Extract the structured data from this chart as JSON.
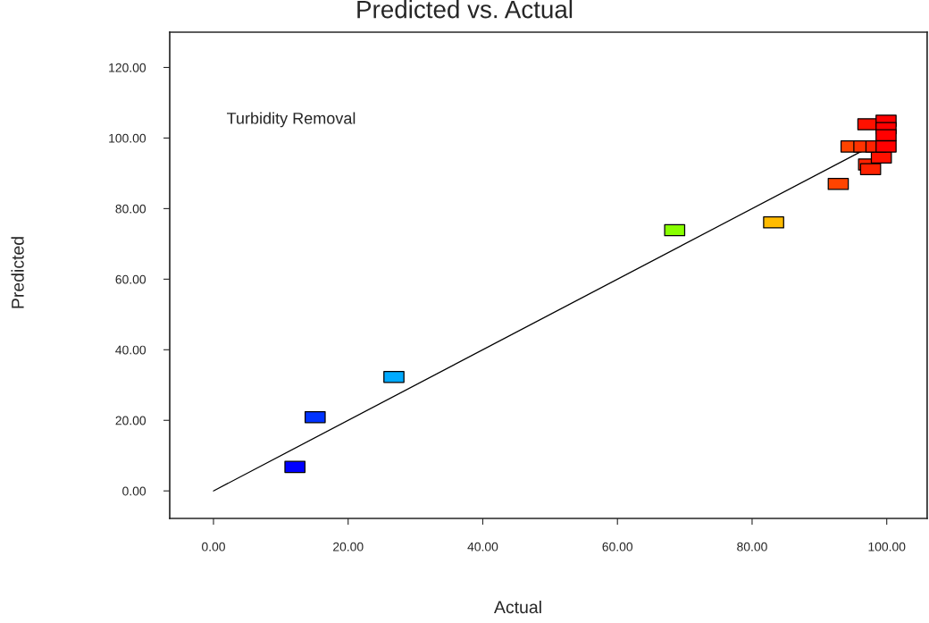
{
  "chart_data": {
    "type": "scatter",
    "title": "Predicted vs. Actual",
    "xlabel": "Actual",
    "ylabel": "Predicted",
    "annotations": [
      "Turbidity Removal"
    ],
    "series": [
      {
        "marker": "square",
        "x": [
          12.1,
          15.1,
          26.8,
          68.5,
          83.2,
          92.8,
          97.3,
          97.6,
          99.2,
          97.2,
          99.9,
          99.9,
          99.9,
          94.7,
          96.6,
          98.4,
          99.9
        ],
        "values": [
          6.8,
          20.9,
          32.3,
          73.9,
          76.1,
          87.0,
          92.5,
          91.2,
          94.5,
          103.9,
          104.9,
          102.8,
          100.8,
          97.6,
          97.6,
          97.6,
          97.6
        ],
        "colors": [
          "#0000ff",
          "#0033ff",
          "#00aaff",
          "#88ff00",
          "#ffbb00",
          "#ff4400",
          "#ff2200",
          "#ff2200",
          "#ff1100",
          "#ff1100",
          "#ff0000",
          "#ff0000",
          "#ff0000",
          "#ff4400",
          "#ff3300",
          "#ff2200",
          "#ff0000"
        ]
      },
      {
        "type": "line",
        "color": "#000000",
        "x": [
          0,
          98
        ],
        "values": [
          0,
          98
        ]
      }
    ],
    "xlim": [
      -6.5,
      106
    ],
    "ylim": [
      -7.8,
      130
    ],
    "xticks": [
      {
        "value": 0,
        "label": "0.00"
      },
      {
        "value": 20,
        "label": "20.00"
      },
      {
        "value": 40,
        "label": "40.00"
      },
      {
        "value": 60,
        "label": "60.00"
      },
      {
        "value": 80,
        "label": "80.00"
      },
      {
        "value": 100,
        "label": "100.00"
      }
    ],
    "yticks": [
      {
        "value": 0,
        "label": "0.00"
      },
      {
        "value": 20,
        "label": "20.00"
      },
      {
        "value": 40,
        "label": "40.00"
      },
      {
        "value": 60,
        "label": "60.00"
      },
      {
        "value": 80,
        "label": "80.00"
      },
      {
        "value": 100,
        "label": "100.00"
      },
      {
        "value": 120,
        "label": "120.00"
      }
    ],
    "grid": false
  }
}
